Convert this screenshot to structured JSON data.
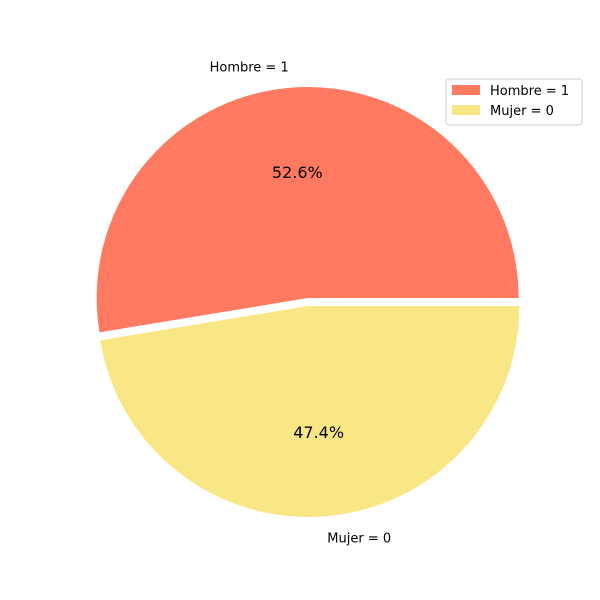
{
  "chart_data": {
    "type": "pie",
    "title": "",
    "slices": [
      {
        "label": "Hombre = 1",
        "value": 52.6,
        "pct_label": "52.6%",
        "color": "#ff7a61"
      },
      {
        "label": "Mujer = 0",
        "value": 47.4,
        "pct_label": "47.4%",
        "color": "#f9e786"
      }
    ],
    "start_angle_deg": 0,
    "direction": "counterclockwise",
    "exploded": true,
    "legend_position": "top-right"
  }
}
